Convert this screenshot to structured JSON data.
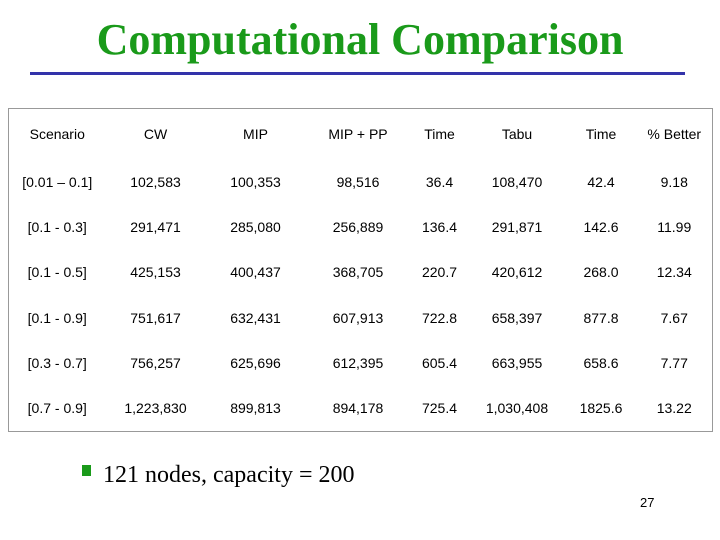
{
  "title": "Computational Comparison",
  "table": {
    "header": [
      "Scenario",
      "CW",
      "MIP",
      "MIP + PP",
      "Time",
      "Tabu",
      "Time",
      "% Better"
    ],
    "rows": [
      [
        "[0.01 – 0.1]",
        "102,583",
        "100,353",
        "98,516",
        "36.4",
        "108,470",
        "42.4",
        "9.18"
      ],
      [
        "[0.1 - 0.3]",
        "291,471",
        "285,080",
        "256,889",
        "136.4",
        "291,871",
        "142.6",
        "11.99"
      ],
      [
        "[0.1 - 0.5]",
        "425,153",
        "400,437",
        "368,705",
        "220.7",
        "420,612",
        "268.0",
        "12.34"
      ],
      [
        "[0.1 - 0.9]",
        "751,617",
        "632,431",
        "607,913",
        "722.8",
        "658,397",
        "877.8",
        "7.67"
      ],
      [
        "[0.3 - 0.7]",
        "756,257",
        "625,696",
        "612,395",
        "605.4",
        "663,955",
        "658.6",
        "7.77"
      ],
      [
        "[0.7 - 0.9]",
        "1,223,830",
        "899,813",
        "894,178",
        "725.4",
        "1,030,408",
        "1825.6",
        "13.22"
      ]
    ]
  },
  "bullet": "121 nodes, capacity = 200",
  "page_number": "27"
}
